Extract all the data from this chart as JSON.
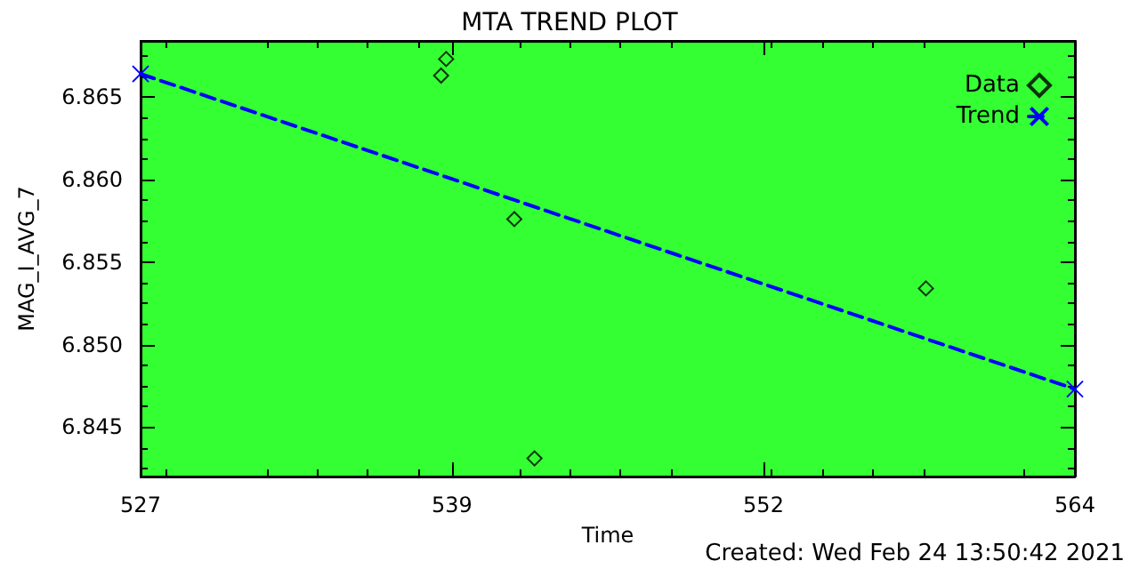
{
  "chart_data": {
    "type": "scatter",
    "title": "MTA TREND PLOT",
    "xlabel": "Time",
    "ylabel": "MAG_I_AVG_7",
    "annotations": [
      "Created: Wed Feb 24 13:50:42 2021"
    ],
    "xlim": [
      527,
      564
    ],
    "xticks": [
      527,
      {
        "value": 539.333,
        "label": "539"
      },
      {
        "value": 551.667,
        "label": "552"
      },
      564
    ],
    "ylim": [
      6.842,
      6.8684
    ],
    "yticks": [
      {
        "value": 6.845,
        "label": "6.845"
      },
      {
        "value": 6.85,
        "label": "6.850"
      },
      {
        "value": 6.855,
        "label": "6.855"
      },
      {
        "value": 6.86,
        "label": "6.860"
      },
      {
        "value": 6.865,
        "label": "6.865"
      }
    ],
    "grid": false,
    "legend": "top right",
    "series": [
      {
        "name": "Data",
        "marker": "diamond",
        "color": "#000000",
        "x": [
          539.1,
          538.9,
          541.8,
          542.6,
          558.1
        ],
        "values": [
          6.8673,
          6.8663,
          6.8576,
          6.8431,
          6.8534
        ]
      },
      {
        "name": "Trend",
        "type": "line",
        "marker": "cross",
        "line_style": "dashed",
        "color": "#0000ff",
        "x": [
          527,
          564
        ],
        "values": [
          6.8664,
          6.8473
        ]
      }
    ]
  }
}
